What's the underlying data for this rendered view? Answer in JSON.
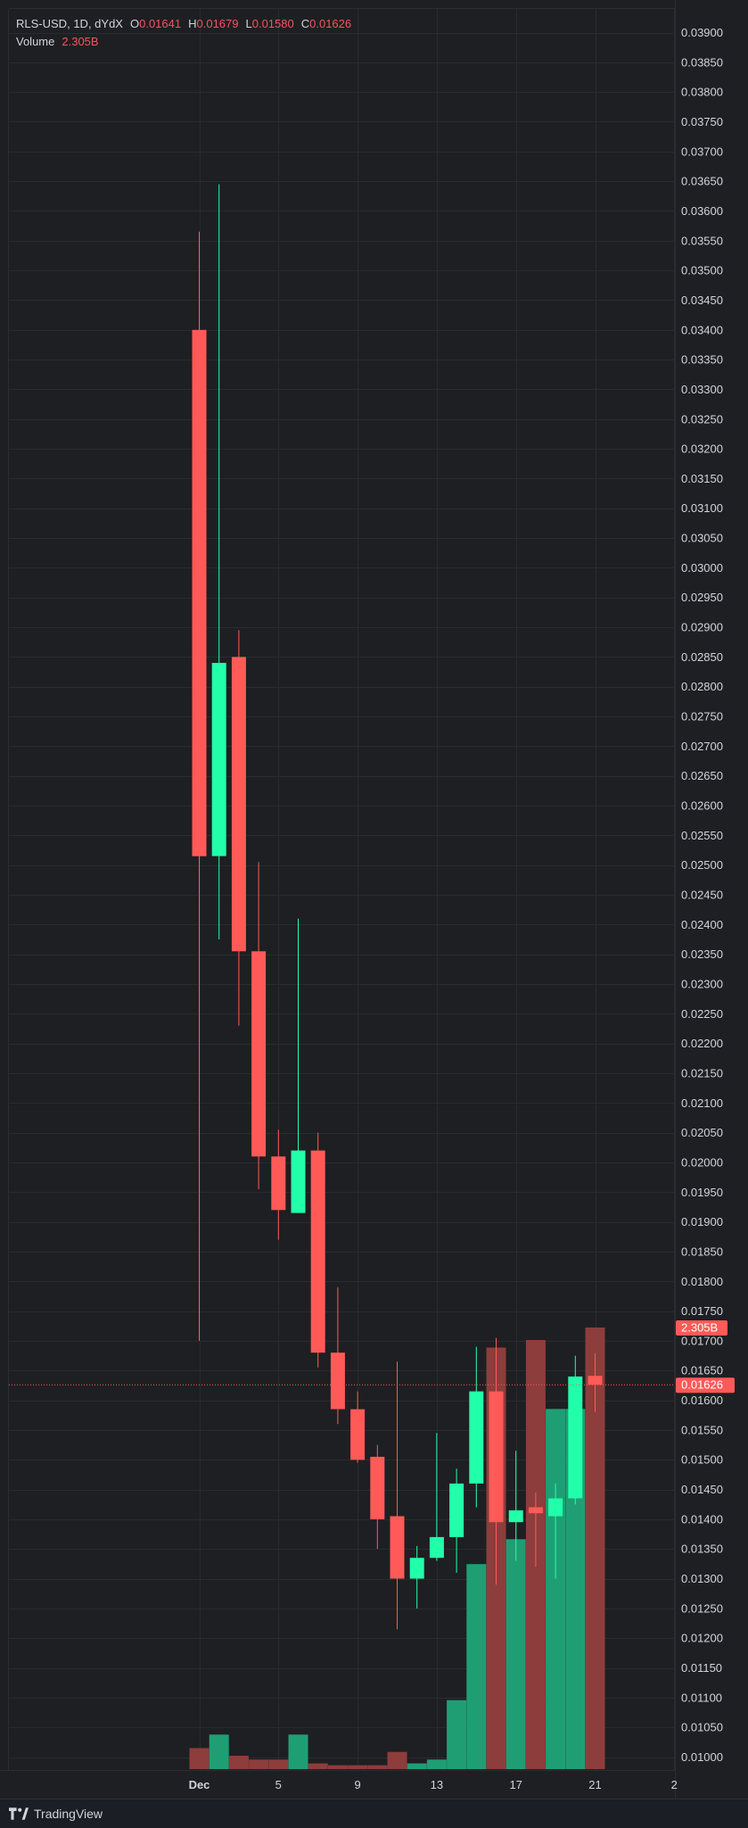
{
  "legend": {
    "symbol": "RLS-USD",
    "interval": "1D",
    "exchange": "dYdX",
    "open_label": "O",
    "open": "0.01641",
    "high_label": "H",
    "high": "0.01679",
    "low_label": "L",
    "low": "0.01580",
    "close_label": "C",
    "close": "0.01626",
    "volume_label": "Volume",
    "volume": "2.305B"
  },
  "footer": {
    "brand": "TradingView"
  },
  "colors": {
    "up": "#22ffaa",
    "down": "#ff5a58",
    "vol_up": "#1f9e74",
    "vol_down": "#8d3d3c",
    "grid": "#2a2b2f",
    "axis_text": "#d1d4dc",
    "background": "#1e1f22"
  },
  "chart_data": {
    "type": "candlestick",
    "interval": "1D",
    "y_axis": {
      "min": 0.01,
      "max": 0.039,
      "step": 0.0005,
      "position": "right",
      "ticks": [
        "0.03900",
        "0.03850",
        "0.03800",
        "0.03750",
        "0.03700",
        "0.03650",
        "0.03600",
        "0.03550",
        "0.03500",
        "0.03450",
        "0.03400",
        "0.03350",
        "0.03300",
        "0.03250",
        "0.03200",
        "0.03150",
        "0.03100",
        "0.03050",
        "0.03000",
        "0.02950",
        "0.02900",
        "0.02850",
        "0.02800",
        "0.02750",
        "0.02700",
        "0.02650",
        "0.02600",
        "0.02550",
        "0.02500",
        "0.02450",
        "0.02400",
        "0.02350",
        "0.02300",
        "0.02250",
        "0.02200",
        "0.02150",
        "0.02100",
        "0.02050",
        "0.02000",
        "0.01950",
        "0.01900",
        "0.01850",
        "0.01800",
        "0.01750",
        "0.01700",
        "0.01650",
        "0.01600",
        "0.01550",
        "0.01500",
        "0.01450",
        "0.01400",
        "0.01350",
        "0.01300",
        "0.01250",
        "0.01200",
        "0.01150",
        "0.01100",
        "0.01050",
        "0.01000"
      ]
    },
    "x_axis": {
      "ticks": [
        {
          "label": "Dec",
          "day": 1,
          "bold": true
        },
        {
          "label": "5",
          "day": 5
        },
        {
          "label": "9",
          "day": 9
        },
        {
          "label": "13",
          "day": 13
        },
        {
          "label": "17",
          "day": 17
        },
        {
          "label": "21",
          "day": 21
        },
        {
          "label": "2",
          "day": 25
        }
      ]
    },
    "candles": [
      {
        "day": 1,
        "o": 0.034,
        "h": 0.03565,
        "l": 0.017,
        "c": 0.02515
      },
      {
        "day": 2,
        "o": 0.02515,
        "h": 0.03645,
        "l": 0.02375,
        "c": 0.0284
      },
      {
        "day": 3,
        "o": 0.0285,
        "h": 0.02895,
        "l": 0.0223,
        "c": 0.02355
      },
      {
        "day": 4,
        "o": 0.02355,
        "h": 0.02505,
        "l": 0.01955,
        "c": 0.0201
      },
      {
        "day": 5,
        "o": 0.0201,
        "h": 0.02055,
        "l": 0.0187,
        "c": 0.0192
      },
      {
        "day": 6,
        "o": 0.01915,
        "h": 0.0241,
        "l": 0.01915,
        "c": 0.0202
      },
      {
        "day": 7,
        "o": 0.0202,
        "h": 0.0205,
        "l": 0.01655,
        "c": 0.0168
      },
      {
        "day": 8,
        "o": 0.0168,
        "h": 0.0179,
        "l": 0.0156,
        "c": 0.01585
      },
      {
        "day": 9,
        "o": 0.01585,
        "h": 0.01615,
        "l": 0.01495,
        "c": 0.015
      },
      {
        "day": 10,
        "o": 0.01505,
        "h": 0.01525,
        "l": 0.0135,
        "c": 0.014
      },
      {
        "day": 11,
        "o": 0.01405,
        "h": 0.01665,
        "l": 0.01215,
        "c": 0.013
      },
      {
        "day": 12,
        "o": 0.013,
        "h": 0.01355,
        "l": 0.0125,
        "c": 0.01335
      },
      {
        "day": 13,
        "o": 0.01335,
        "h": 0.01545,
        "l": 0.0133,
        "c": 0.0137
      },
      {
        "day": 14,
        "o": 0.0137,
        "h": 0.01485,
        "l": 0.0131,
        "c": 0.0146
      },
      {
        "day": 15,
        "o": 0.0146,
        "h": 0.0169,
        "l": 0.0142,
        "c": 0.01615
      },
      {
        "day": 16,
        "o": 0.01615,
        "h": 0.01705,
        "l": 0.0129,
        "c": 0.01395
      },
      {
        "day": 17,
        "o": 0.01395,
        "h": 0.01515,
        "l": 0.0133,
        "c": 0.01415
      },
      {
        "day": 18,
        "o": 0.0142,
        "h": 0.01445,
        "l": 0.0132,
        "c": 0.0141
      },
      {
        "day": 19,
        "o": 0.01405,
        "h": 0.0146,
        "l": 0.013,
        "c": 0.01435
      },
      {
        "day": 20,
        "o": 0.01435,
        "h": 0.01675,
        "l": 0.01425,
        "c": 0.0164
      },
      {
        "day": 21,
        "o": 0.01641,
        "h": 0.01679,
        "l": 0.0158,
        "c": 0.01626
      }
    ],
    "volume": {
      "unit": "B",
      "max": 2.305,
      "bars": [
        {
          "day": 1,
          "v": 0.11,
          "dir": "down"
        },
        {
          "day": 2,
          "v": 0.18,
          "dir": "up"
        },
        {
          "day": 3,
          "v": 0.07,
          "dir": "down"
        },
        {
          "day": 4,
          "v": 0.05,
          "dir": "down"
        },
        {
          "day": 5,
          "v": 0.05,
          "dir": "down"
        },
        {
          "day": 6,
          "v": 0.18,
          "dir": "up"
        },
        {
          "day": 7,
          "v": 0.03,
          "dir": "down"
        },
        {
          "day": 8,
          "v": 0.02,
          "dir": "down"
        },
        {
          "day": 9,
          "v": 0.02,
          "dir": "down"
        },
        {
          "day": 10,
          "v": 0.02,
          "dir": "down"
        },
        {
          "day": 11,
          "v": 0.09,
          "dir": "down"
        },
        {
          "day": 12,
          "v": 0.03,
          "dir": "up"
        },
        {
          "day": 13,
          "v": 0.05,
          "dir": "up"
        },
        {
          "day": 14,
          "v": 0.36,
          "dir": "up"
        },
        {
          "day": 15,
          "v": 1.07,
          "dir": "up"
        },
        {
          "day": 16,
          "v": 2.2,
          "dir": "down"
        },
        {
          "day": 17,
          "v": 1.2,
          "dir": "up"
        },
        {
          "day": 18,
          "v": 2.24,
          "dir": "down"
        },
        {
          "day": 19,
          "v": 1.88,
          "dir": "up"
        },
        {
          "day": 20,
          "v": 1.88,
          "dir": "up"
        },
        {
          "day": 21,
          "v": 2.305,
          "dir": "down"
        }
      ]
    },
    "price_label": "0.01626",
    "volume_label": "2.305B",
    "last_price": 0.01626
  }
}
